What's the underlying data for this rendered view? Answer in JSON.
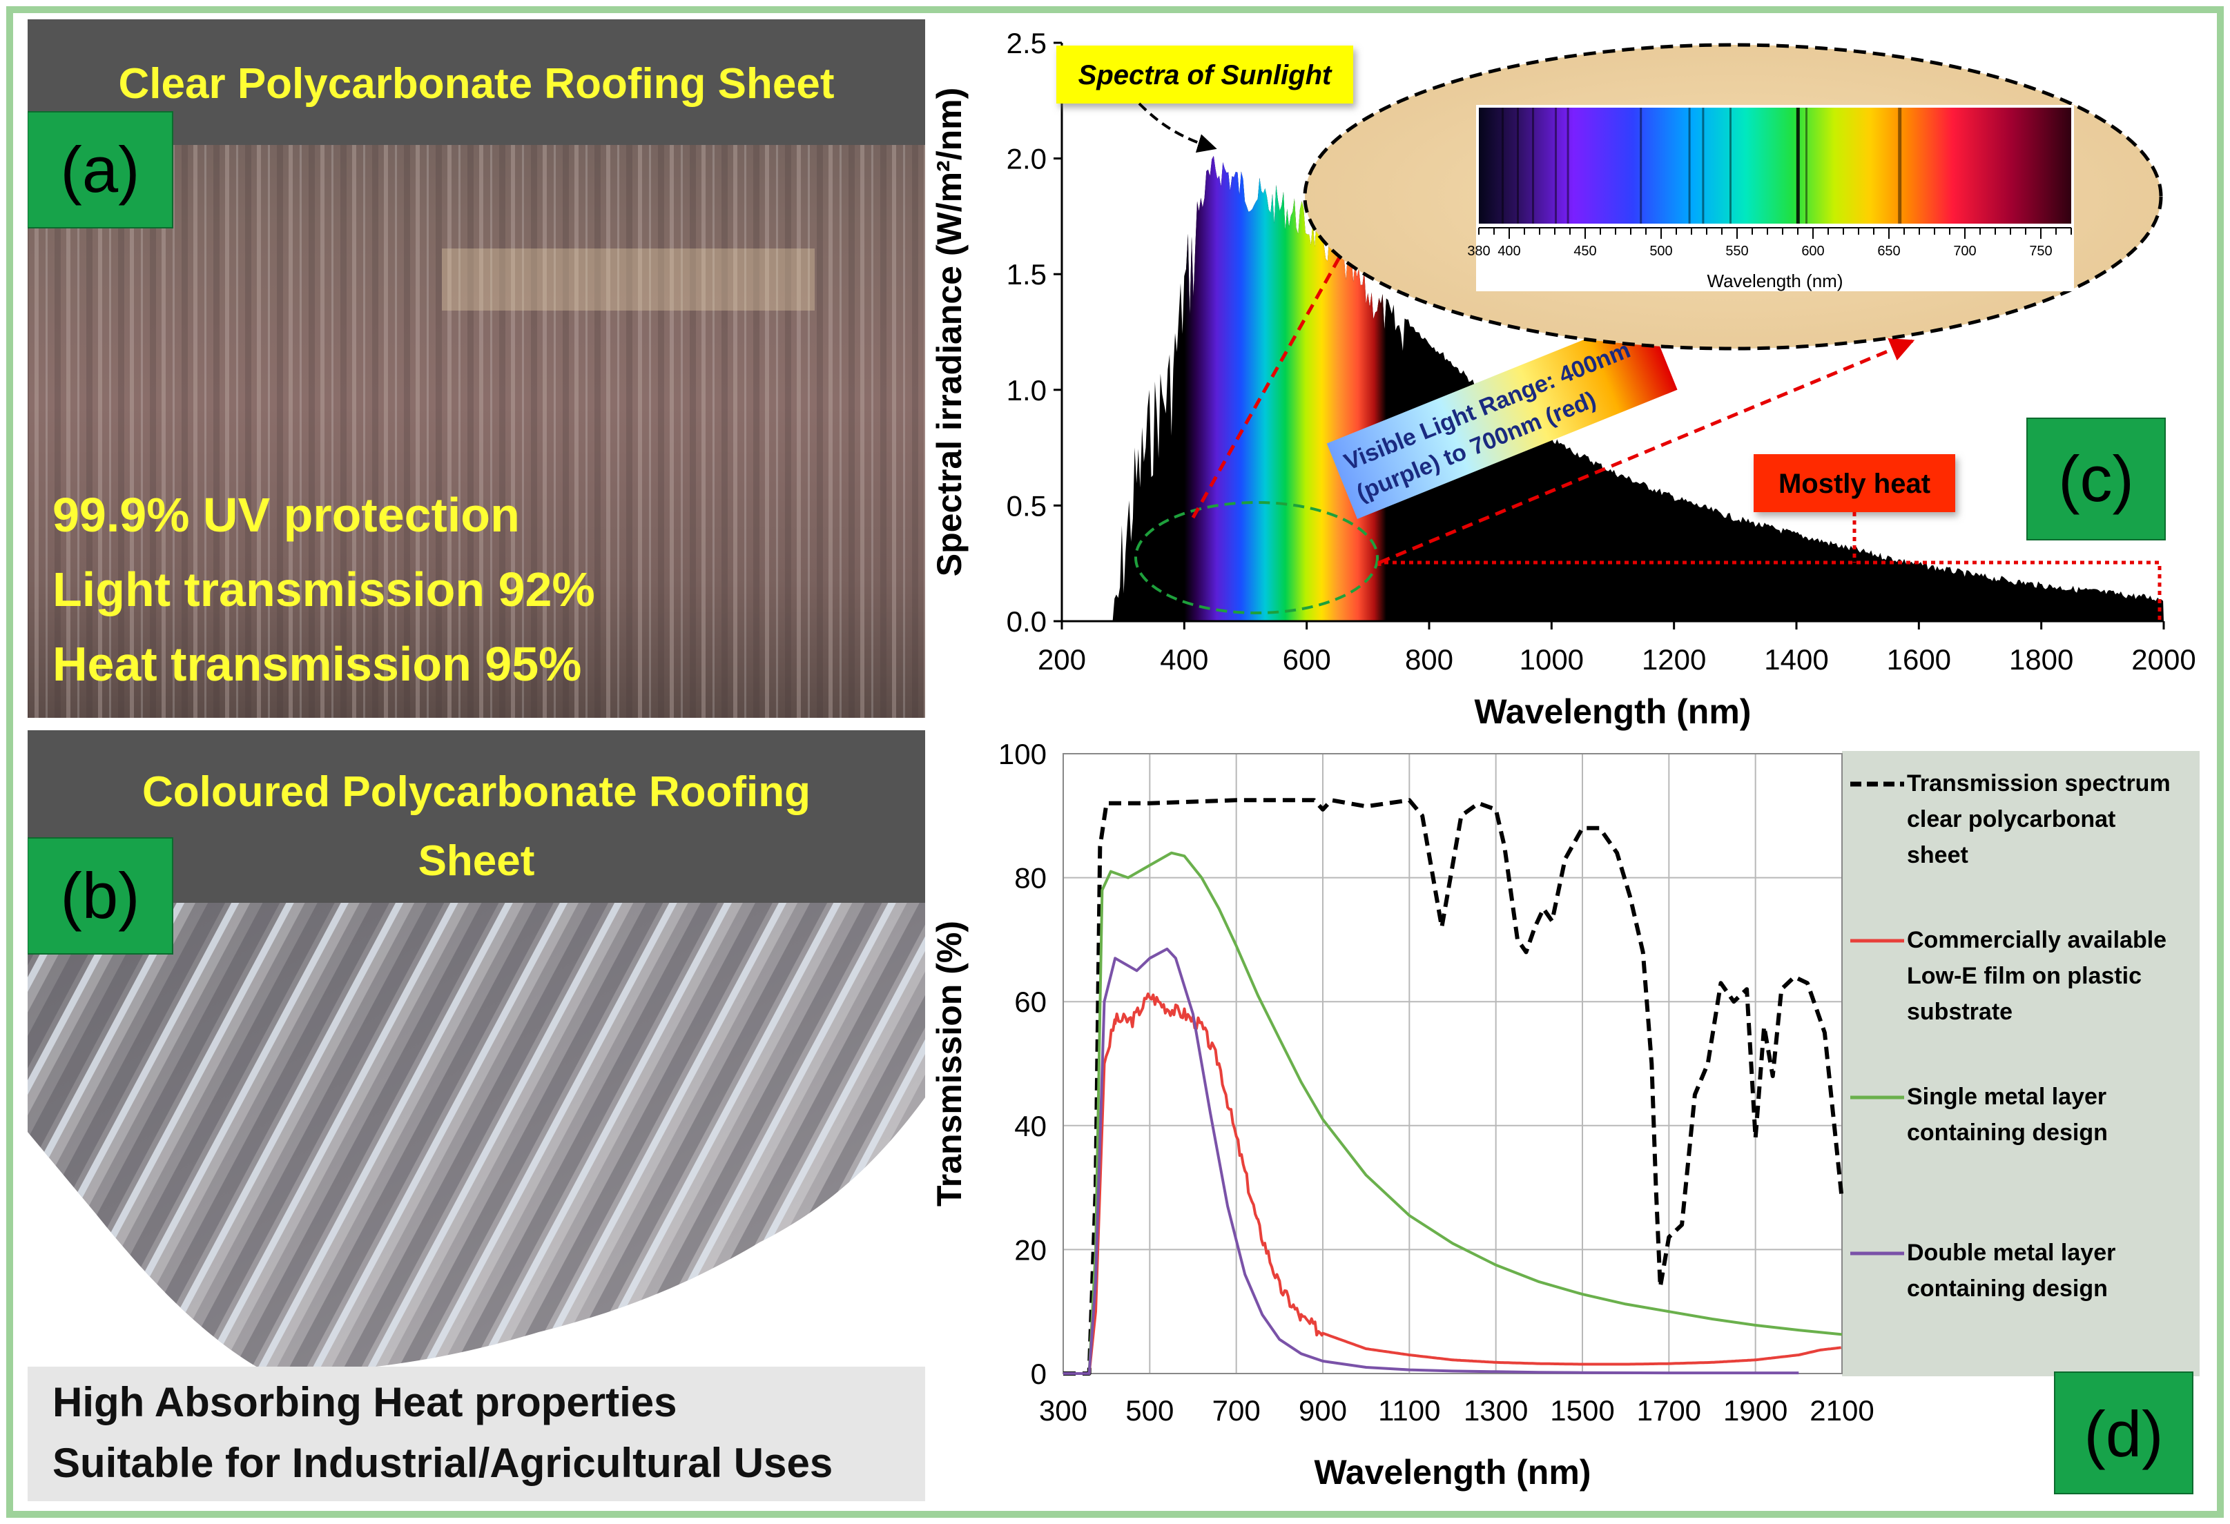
{
  "panel_a": {
    "title": "Clear Polycarbonate Roofing Sheet",
    "label": "(a)",
    "features": [
      "99.9% UV protection",
      "Light transmission 92%",
      "Heat transmission 95%"
    ]
  },
  "panel_b": {
    "title_line1": "Coloured Polycarbonate Roofing",
    "title_line2": "Sheet",
    "label": "(b)",
    "features": [
      "High Absorbing Heat properties",
      "Suitable for Industrial/Agricultural Uses"
    ]
  },
  "chart_data": [
    {
      "id": "c",
      "type": "area",
      "label": "(c)",
      "xlabel": "Wavelength (nm)",
      "ylabel": "Spectral irradiance (W/m²/nm)",
      "xlim": [
        200,
        2000
      ],
      "ylim": [
        0,
        2.5
      ],
      "xticks": [
        200,
        400,
        600,
        800,
        1000,
        1200,
        1400,
        1600,
        1800,
        2000
      ],
      "yticks": [
        "0.0",
        "0.5",
        "1.0",
        "1.5",
        "2.0",
        "2.5"
      ],
      "series": [
        {
          "x": [
            280,
            300,
            320,
            340,
            360,
            380,
            400,
            420,
            440,
            460,
            480,
            500,
            540,
            580,
            620,
            660,
            700,
            750,
            800,
            850,
            900,
            1000,
            1100,
            1200,
            1300,
            1400,
            1500,
            1600,
            1700,
            1800,
            1900,
            2000
          ],
          "y": [
            0.0,
            0.5,
            0.8,
            1.0,
            1.15,
            1.25,
            1.65,
            1.85,
            2.0,
            2.05,
            2.0,
            1.95,
            1.9,
            1.85,
            1.75,
            1.63,
            1.5,
            1.35,
            1.22,
            1.1,
            0.98,
            0.8,
            0.66,
            0.55,
            0.46,
            0.39,
            0.32,
            0.26,
            0.21,
            0.17,
            0.14,
            0.11
          ]
        }
      ],
      "annotations": {
        "sunlight": "Spectra of Sunlight",
        "visible_line1": "Visible Light Range: 400nm",
        "visible_line2": "(purple) to 700nm (red)",
        "heat": "Mostly heat"
      },
      "inset": {
        "xlabel": "Wavelength (nm)",
        "ticks": [
          "380",
          "400",
          "450",
          "500",
          "550",
          "600",
          "650",
          "700",
          "750"
        ]
      },
      "colors": {
        "area": "#000000",
        "sunlight_box": "#ffff00",
        "heat_box": "#ff2a00",
        "arrow": "#e60000",
        "ellipse": "#1ea03c"
      }
    },
    {
      "id": "d",
      "type": "line",
      "label": "(d)",
      "xlabel": "Wavelength (nm)",
      "ylabel": "Transmission (%)",
      "xlim": [
        300,
        2100
      ],
      "ylim": [
        0,
        100
      ],
      "xticks": [
        300,
        500,
        700,
        900,
        1100,
        1300,
        1500,
        1700,
        1900,
        2100
      ],
      "yticks": [
        0,
        20,
        40,
        60,
        80,
        100
      ],
      "series": [
        {
          "name": "Transmission spectrum clear polycarbonat sheet",
          "legend_lines": [
            "Transmission spectrum",
            "clear polycarbonat",
            "sheet"
          ],
          "color": "#000000",
          "dash": true,
          "x": [
            300,
            360,
            375,
            385,
            400,
            500,
            700,
            880,
            900,
            920,
            960,
            1000,
            1050,
            1100,
            1130,
            1160,
            1175,
            1190,
            1220,
            1260,
            1300,
            1320,
            1350,
            1370,
            1390,
            1410,
            1430,
            1460,
            1500,
            1540,
            1580,
            1610,
            1640,
            1660,
            1670,
            1680,
            1700,
            1730,
            1760,
            1790,
            1820,
            1850,
            1880,
            1900,
            1920,
            1940,
            1960,
            1990,
            2020,
            2060,
            2100
          ],
          "y": [
            0,
            0,
            30,
            85,
            92,
            92,
            92.5,
            92.5,
            91,
            92.5,
            92,
            91.5,
            92,
            92.5,
            90,
            78,
            72,
            78,
            90,
            92,
            91,
            85,
            70,
            68,
            72,
            75,
            73,
            83,
            88,
            88,
            84,
            77,
            68,
            50,
            30,
            14,
            22,
            24,
            45,
            50,
            63,
            60,
            62,
            38,
            56,
            48,
            62,
            64,
            63,
            55,
            28
          ]
        },
        {
          "name": "Commercially available Low-E film on plastic substrate",
          "legend_lines": [
            "Commercially available",
            "Low-E film on plastic",
            "substrate"
          ],
          "color": "#e8403a",
          "dash": false,
          "x": [
            300,
            360,
            375,
            395,
            420,
            460,
            500,
            540,
            580,
            620,
            660,
            700,
            750,
            800,
            850,
            900,
            1000,
            1100,
            1200,
            1300,
            1400,
            1500,
            1600,
            1700,
            1800,
            1900,
            2000,
            2050,
            2100
          ],
          "y": [
            0,
            0,
            10,
            50,
            57,
            57,
            61,
            59,
            58,
            56,
            50,
            38,
            24,
            14,
            9,
            6.5,
            4,
            3,
            2.2,
            1.8,
            1.6,
            1.5,
            1.5,
            1.6,
            1.8,
            2.2,
            3,
            3.8,
            4.2
          ]
        },
        {
          "name": "Single metal layer containing design",
          "legend_lines": [
            "Single metal layer",
            "containing design"
          ],
          "color": "#6ab04c",
          "dash": false,
          "x": [
            300,
            360,
            375,
            390,
            410,
            450,
            500,
            550,
            580,
            620,
            660,
            700,
            750,
            800,
            850,
            900,
            1000,
            1100,
            1200,
            1300,
            1400,
            1500,
            1600,
            1700,
            1800,
            1900,
            2000,
            2100
          ],
          "y": [
            0,
            0,
            20,
            78,
            81,
            80,
            82,
            84,
            83.5,
            80,
            75,
            69,
            61,
            54,
            47,
            41,
            32,
            25.5,
            21,
            17.5,
            14.8,
            12.8,
            11.2,
            10,
            8.8,
            7.8,
            7,
            6.3
          ]
        },
        {
          "name": "Double metal layer containing design",
          "legend_lines": [
            "Double metal layer",
            "containing design"
          ],
          "color": "#7a52a8",
          "dash": false,
          "x": [
            300,
            360,
            375,
            395,
            420,
            470,
            500,
            540,
            560,
            600,
            640,
            680,
            720,
            760,
            800,
            850,
            900,
            1000,
            1100,
            1200,
            1300,
            1400,
            1500,
            1700,
            2000
          ],
          "y": [
            0,
            0,
            15,
            60,
            67,
            65,
            67,
            68.5,
            67,
            58,
            42,
            27,
            16,
            9.5,
            5.5,
            3.2,
            2,
            1,
            0.6,
            0.4,
            0.3,
            0.2,
            0.15,
            0.1,
            0.1
          ]
        }
      ],
      "colors": {
        "plot_bg": "#ffffff",
        "legend_bg": "#d4dcd2",
        "grid": "#b8b8b8"
      }
    }
  ],
  "colors": {
    "border": "#9ed29a",
    "label_bg": "#17a34a",
    "title_bar": "#545454",
    "title_text": "#ffff33",
    "feature_text": "#ffff33"
  }
}
